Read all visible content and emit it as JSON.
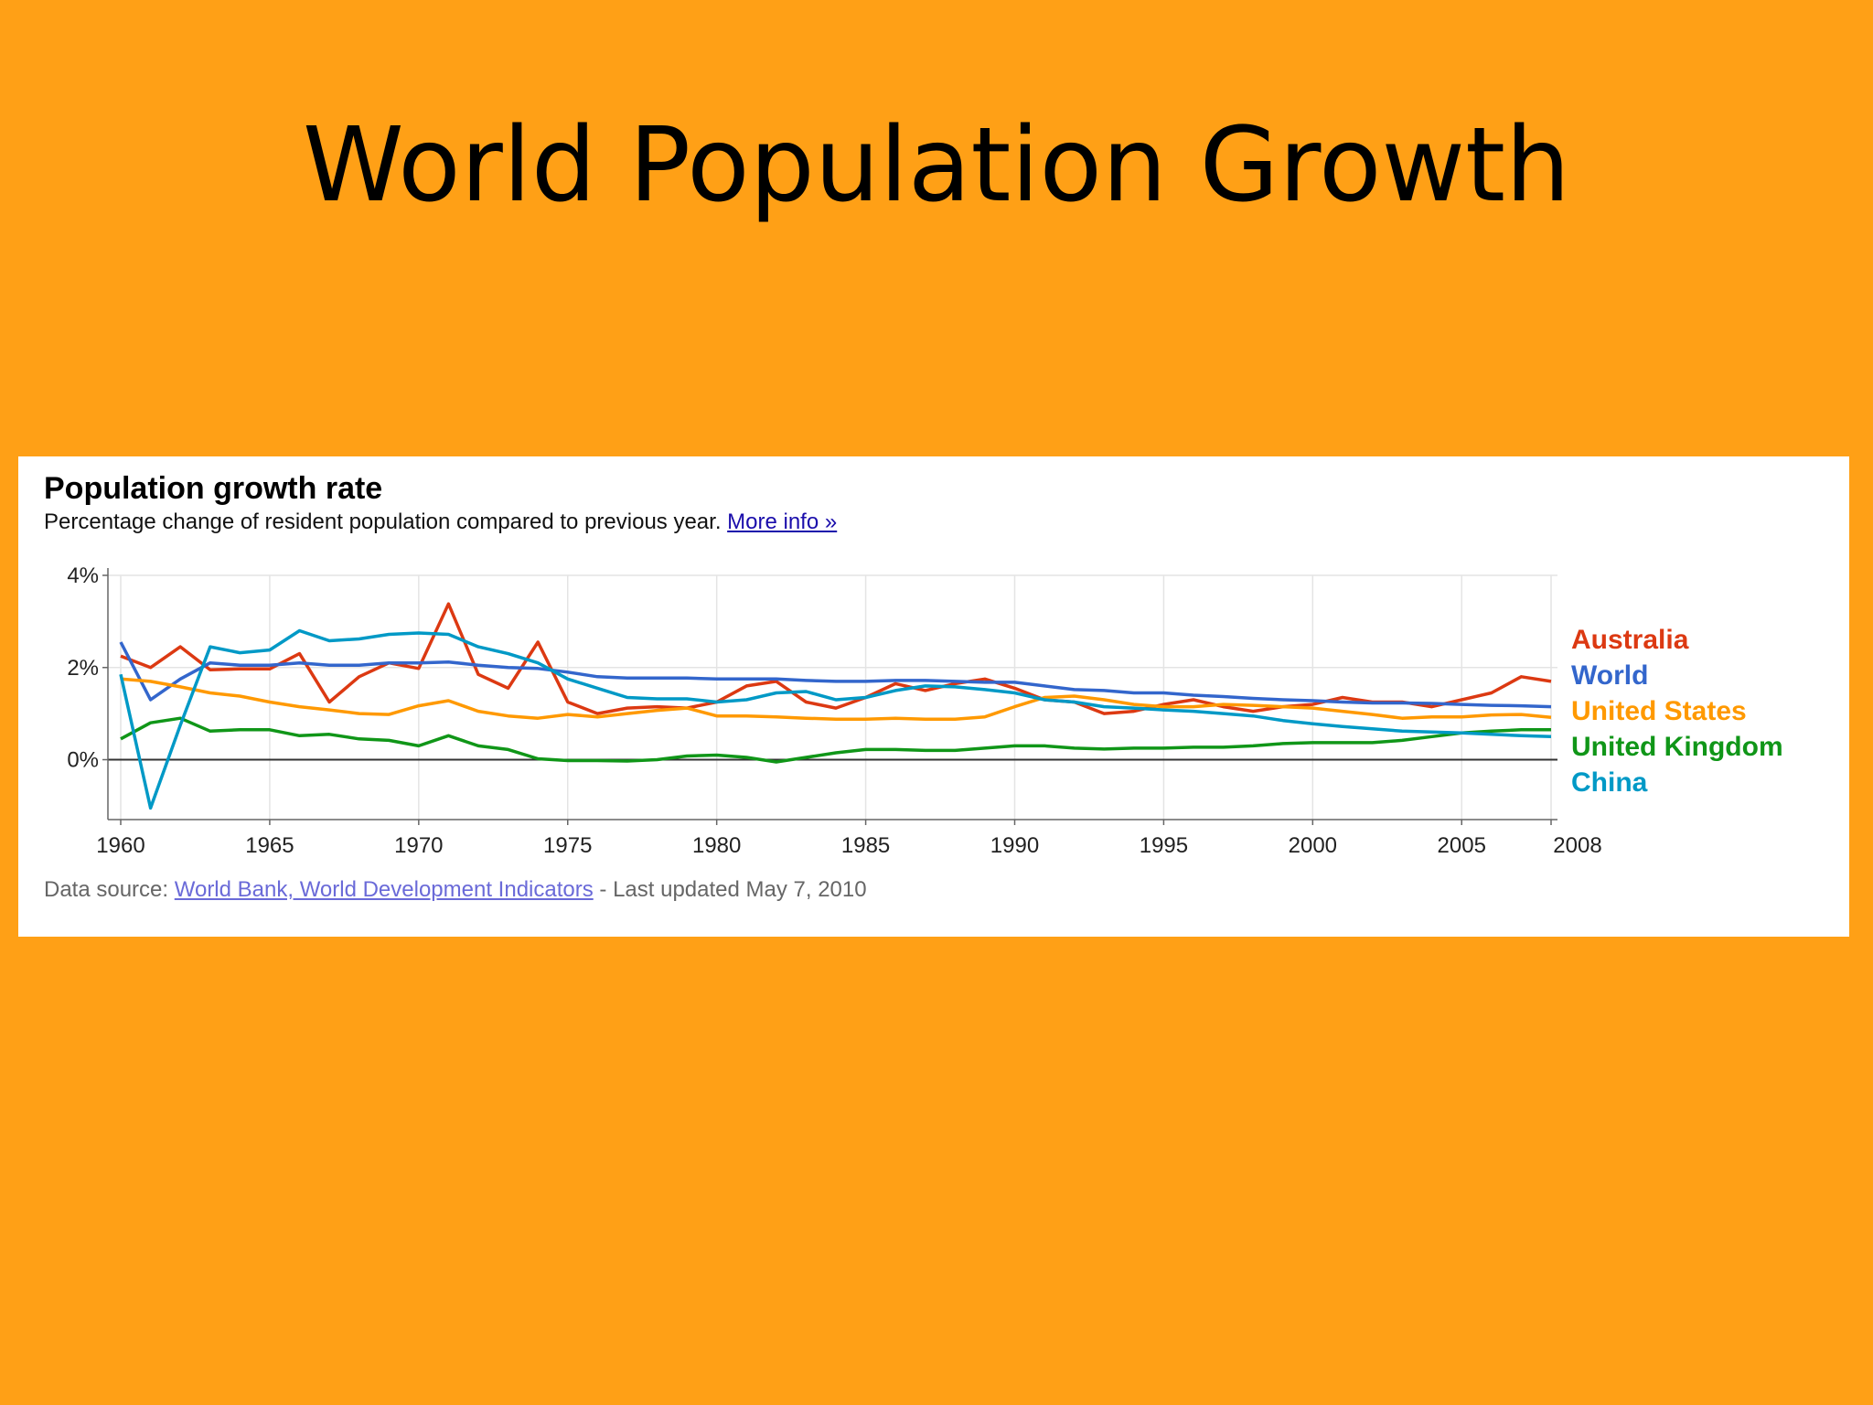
{
  "slide": {
    "title": "World Population Growth"
  },
  "chart_data": {
    "type": "line",
    "title": "Population growth rate",
    "subtitle": "Percentage change of resident population compared to previous year.",
    "more_info": "More info »",
    "source_prefix": "Data source:",
    "source_link": "World Bank, World Development Indicators",
    "source_suffix": "- Last updated May 7, 2010",
    "x": [
      1960,
      1961,
      1962,
      1963,
      1964,
      1965,
      1966,
      1967,
      1968,
      1969,
      1970,
      1971,
      1972,
      1973,
      1974,
      1975,
      1976,
      1977,
      1978,
      1979,
      1980,
      1981,
      1982,
      1983,
      1984,
      1985,
      1986,
      1987,
      1988,
      1989,
      1990,
      1991,
      1992,
      1993,
      1994,
      1995,
      1996,
      1997,
      1998,
      1999,
      2000,
      2001,
      2002,
      2003,
      2004,
      2005,
      2006,
      2007,
      2008
    ],
    "xlim": [
      1960,
      2008
    ],
    "ylim": [
      -1.3,
      4.0
    ],
    "x_ticks": [
      "1960",
      "1965",
      "1970",
      "1975",
      "1980",
      "1985",
      "1990",
      "1995",
      "2000",
      "2005",
      "2008"
    ],
    "y_ticks": [
      {
        "value": 4,
        "label": "4%"
      },
      {
        "value": 2,
        "label": "2%"
      },
      {
        "value": 0,
        "label": "0%"
      }
    ],
    "grid": true,
    "legend": "right",
    "series": [
      {
        "name": "Australia",
        "color": "#DC3912",
        "values": [
          2.25,
          2.0,
          2.45,
          1.95,
          1.97,
          1.97,
          2.3,
          1.25,
          1.8,
          2.1,
          1.98,
          3.38,
          1.85,
          1.55,
          2.55,
          1.25,
          1.0,
          1.12,
          1.15,
          1.12,
          1.25,
          1.6,
          1.7,
          1.25,
          1.12,
          1.35,
          1.65,
          1.5,
          1.65,
          1.75,
          1.55,
          1.3,
          1.25,
          1.0,
          1.05,
          1.2,
          1.3,
          1.15,
          1.05,
          1.15,
          1.2,
          1.35,
          1.25,
          1.25,
          1.15,
          1.3,
          1.45,
          1.8,
          1.7
        ]
      },
      {
        "name": "World",
        "color": "#3366CC",
        "values": [
          2.55,
          1.3,
          1.75,
          2.1,
          2.05,
          2.05,
          2.1,
          2.05,
          2.05,
          2.1,
          2.1,
          2.12,
          2.05,
          2.0,
          1.98,
          1.9,
          1.8,
          1.77,
          1.77,
          1.77,
          1.75,
          1.75,
          1.75,
          1.72,
          1.7,
          1.7,
          1.72,
          1.72,
          1.7,
          1.68,
          1.68,
          1.6,
          1.52,
          1.5,
          1.45,
          1.45,
          1.4,
          1.37,
          1.33,
          1.3,
          1.28,
          1.25,
          1.23,
          1.23,
          1.22,
          1.2,
          1.18,
          1.17,
          1.15
        ]
      },
      {
        "name": "United States",
        "color": "#FF9900",
        "values": [
          1.75,
          1.7,
          1.58,
          1.45,
          1.38,
          1.25,
          1.15,
          1.08,
          1.0,
          0.98,
          1.17,
          1.28,
          1.05,
          0.95,
          0.9,
          0.98,
          0.93,
          1.0,
          1.07,
          1.12,
          0.95,
          0.95,
          0.93,
          0.9,
          0.88,
          0.88,
          0.9,
          0.88,
          0.88,
          0.93,
          1.15,
          1.35,
          1.38,
          1.3,
          1.2,
          1.15,
          1.15,
          1.2,
          1.18,
          1.15,
          1.12,
          1.05,
          0.98,
          0.9,
          0.93,
          0.93,
          0.97,
          0.98,
          0.92
        ]
      },
      {
        "name": "United Kingdom",
        "color": "#109618",
        "values": [
          0.45,
          0.8,
          0.9,
          0.62,
          0.65,
          0.65,
          0.52,
          0.55,
          0.45,
          0.42,
          0.3,
          0.52,
          0.3,
          0.22,
          0.02,
          -0.02,
          -0.02,
          -0.03,
          0.0,
          0.08,
          0.1,
          0.05,
          -0.05,
          0.05,
          0.15,
          0.22,
          0.22,
          0.2,
          0.2,
          0.25,
          0.3,
          0.3,
          0.25,
          0.23,
          0.25,
          0.25,
          0.27,
          0.27,
          0.3,
          0.35,
          0.37,
          0.37,
          0.37,
          0.42,
          0.5,
          0.58,
          0.62,
          0.65,
          0.65
        ]
      },
      {
        "name": "China",
        "color": "#0099C6",
        "values": [
          1.85,
          -1.05,
          0.75,
          2.45,
          2.32,
          2.38,
          2.8,
          2.58,
          2.62,
          2.72,
          2.75,
          2.72,
          2.45,
          2.3,
          2.1,
          1.75,
          1.55,
          1.35,
          1.32,
          1.32,
          1.25,
          1.3,
          1.45,
          1.48,
          1.3,
          1.35,
          1.5,
          1.6,
          1.58,
          1.52,
          1.45,
          1.3,
          1.25,
          1.15,
          1.12,
          1.08,
          1.05,
          1.0,
          0.95,
          0.85,
          0.78,
          0.72,
          0.67,
          0.62,
          0.6,
          0.58,
          0.55,
          0.52,
          0.5
        ]
      }
    ]
  }
}
